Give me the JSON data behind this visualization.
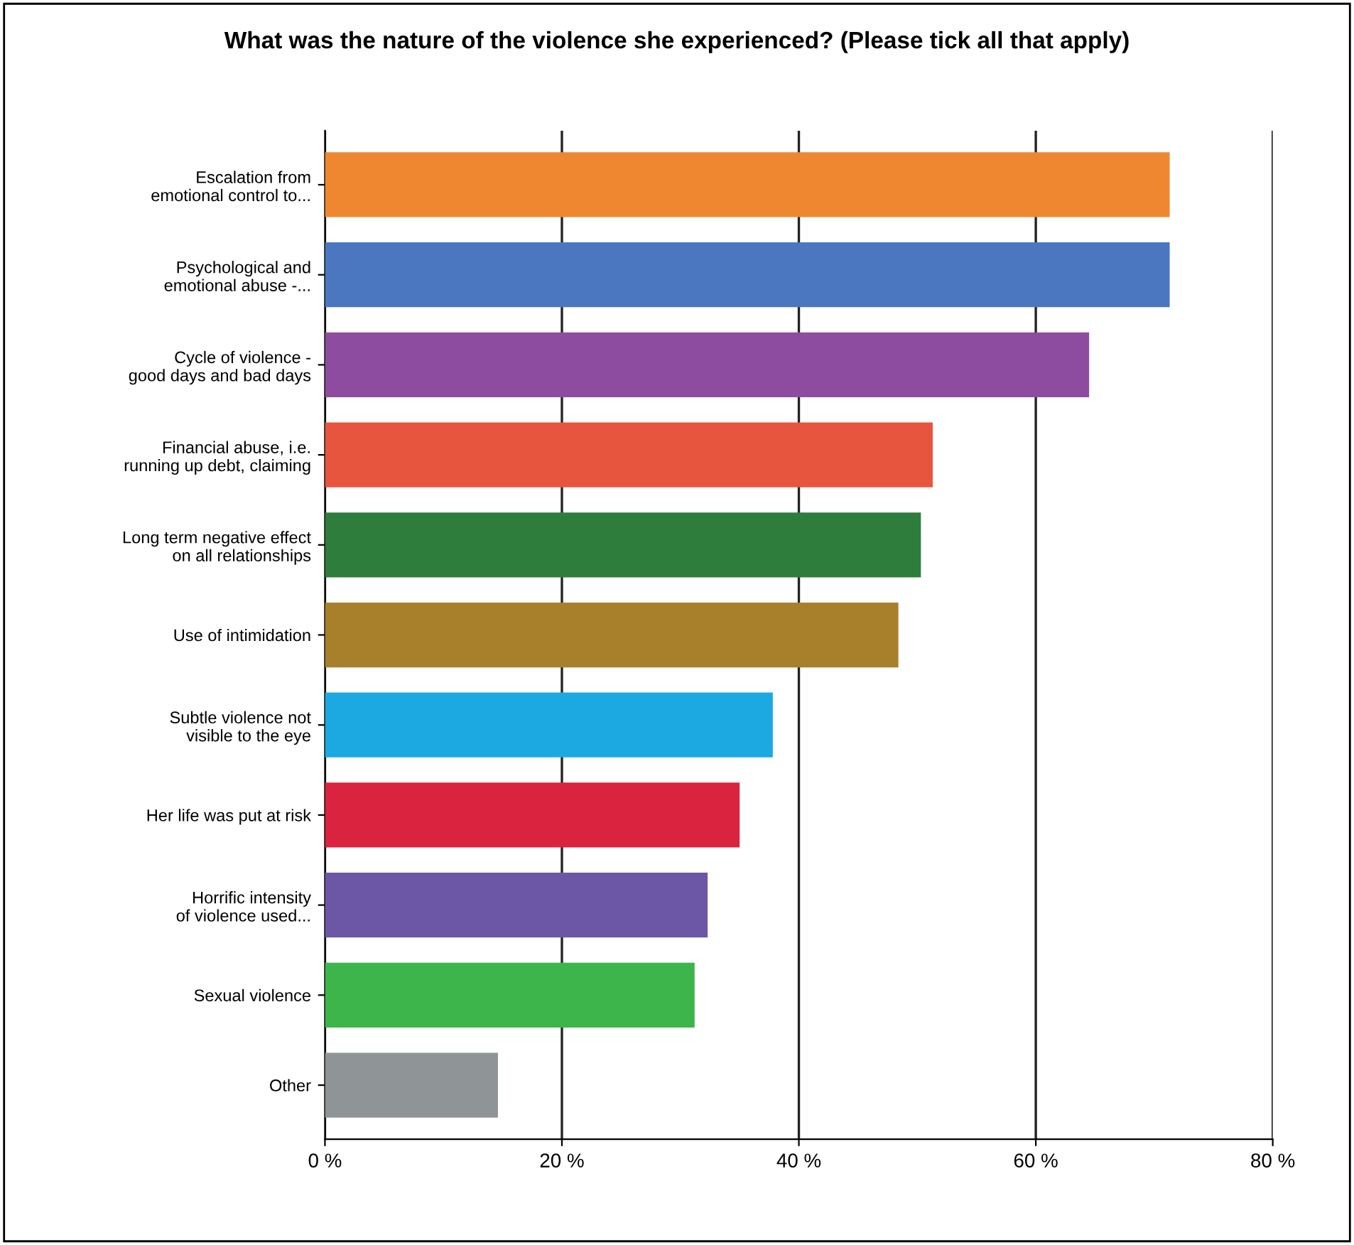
{
  "chart_data": {
    "type": "bar",
    "orientation": "horizontal",
    "title": "What was the nature of the violence she experienced? (Please tick all that apply)",
    "categories": [
      "Escalation from\nemotional control to...",
      "Psychological and\nemotional abuse -...",
      "Cycle of violence -\ngood days and bad days",
      "Financial abuse, i.e.\nrunning up debt, claiming",
      "Long term negative effect\non all relationships",
      "Use of intimidation",
      "Subtle violence not\nvisible to the eye",
      "Her life was put at risk",
      "Horrific intensity\nof violence used...",
      "Sexual violence",
      "Other"
    ],
    "values": [
      71.3,
      71.3,
      64.5,
      51.3,
      50.3,
      48.4,
      37.8,
      35.0,
      32.3,
      31.2,
      14.6
    ],
    "colors": [
      "#ef8730",
      "#4a77bf",
      "#8e4ca0",
      "#e8553f",
      "#2e7d3c",
      "#a8802c",
      "#1ca9e2",
      "#d9233f",
      "#6c57a6",
      "#3db54a",
      "#8f9496"
    ],
    "xlim": [
      0,
      80
    ],
    "xticks": [
      {
        "value": 0,
        "label": "0 %"
      },
      {
        "value": 20,
        "label": "20 %"
      },
      {
        "value": 40,
        "label": "40 %"
      },
      {
        "value": 60,
        "label": "60 %"
      },
      {
        "value": 80,
        "label": "80 %"
      }
    ],
    "grid": "x"
  }
}
